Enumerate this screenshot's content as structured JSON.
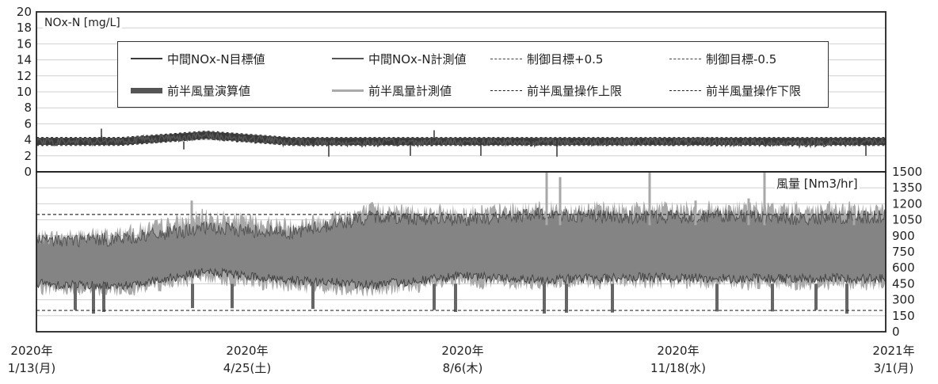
{
  "chart_data": [
    {
      "type": "line",
      "panel": "top",
      "ylabel": "NOx-N [mg/L]",
      "ylim": [
        0,
        20
      ],
      "yticks": [
        "20",
        "18",
        "16",
        "14",
        "12",
        "10",
        "8",
        "6",
        "4",
        "2",
        "0"
      ],
      "grid": true,
      "legend_placement": "top-center",
      "series": [
        {
          "name": "中間NOx-N目標値",
          "values": [
            3.8,
            3.8,
            4.6,
            3.8,
            3.8,
            3.8,
            3.8,
            3.8,
            3.8,
            3.8,
            3.8
          ]
        },
        {
          "name": "中間NOx-N計測値",
          "values": [
            3.7,
            3.9,
            4.5,
            3.7,
            3.6,
            3.8,
            3.7,
            3.8,
            3.7,
            3.6,
            3.8
          ]
        },
        {
          "name": "制御目標+0.5",
          "values": [
            4.3,
            4.3,
            5.1,
            4.3,
            4.3,
            4.3,
            4.3,
            4.3,
            4.3,
            4.3,
            4.3
          ]
        },
        {
          "name": "制御目標-0.5",
          "values": [
            3.3,
            3.3,
            4.1,
            3.3,
            3.3,
            3.3,
            3.3,
            3.3,
            3.3,
            3.3,
            3.3
          ]
        }
      ]
    },
    {
      "type": "line",
      "panel": "bottom",
      "ylabel": "風量 [Nm3/hr]",
      "ylim": [
        0,
        1500
      ],
      "yticks": [
        "1500",
        "1350",
        "1200",
        "1050",
        "900",
        "750",
        "600",
        "450",
        "300",
        "150",
        "0"
      ],
      "grid": true,
      "series": [
        {
          "name": "前半風量演算値",
          "low": [
            450,
            430,
            560,
            480,
            440,
            520,
            490,
            510,
            500,
            500,
            500
          ],
          "high": [
            850,
            870,
            970,
            930,
            1080,
            1050,
            1100,
            1070,
            1090,
            1060,
            1080
          ]
        },
        {
          "name": "前半風量計測値",
          "low": [
            400,
            380,
            500,
            420,
            380,
            460,
            440,
            460,
            450,
            440,
            450
          ],
          "high": [
            880,
            920,
            1080,
            1000,
            1150,
            1120,
            1150,
            1150,
            1160,
            1150,
            1140
          ]
        },
        {
          "name": "前半風量操作上限",
          "values": [
            1100,
            1100,
            1100,
            1100,
            1100,
            1100,
            1100,
            1100,
            1100,
            1100,
            1100
          ]
        },
        {
          "name": "前半風量操作下限",
          "values": [
            200,
            200,
            200,
            200,
            200,
            200,
            200,
            200,
            200,
            200,
            200
          ]
        }
      ]
    }
  ],
  "x_labels": [
    {
      "year": "2020年",
      "date": "1/13(月)"
    },
    {
      "year": "2020年",
      "date": "4/25(土)"
    },
    {
      "year": "2020年",
      "date": "8/6(木)"
    },
    {
      "year": "2020年",
      "date": "11/18(水)"
    },
    {
      "year": "2021年",
      "date": "3/1(月)"
    }
  ],
  "legend": [
    {
      "label": "中間NOx-N目標値",
      "style": "thin-dark"
    },
    {
      "label": "中間NOx-N計測値",
      "style": "thin-mid"
    },
    {
      "label": "制御目標+0.5",
      "style": "dash"
    },
    {
      "label": "制御目標-0.5",
      "style": "dash"
    },
    {
      "label": "前半風量演算値",
      "style": "thick"
    },
    {
      "label": "前半風量計測値",
      "style": "thick-light"
    },
    {
      "label": "前半風量操作上限",
      "style": "dash-dense"
    },
    {
      "label": "前半風量操作下限",
      "style": "dash-dense"
    }
  ],
  "colors": {
    "frame": "#222222",
    "grid": "#d0d0d0",
    "nox": "#3a3a3a",
    "air_calc": "#666666",
    "air_meas": "#a8a8a8",
    "limit": "#333333"
  }
}
